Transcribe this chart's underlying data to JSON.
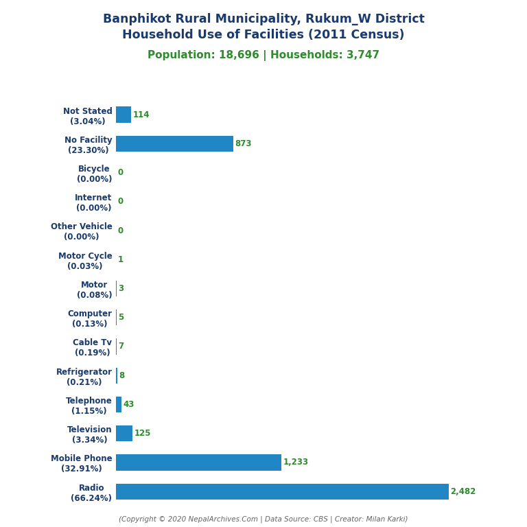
{
  "title_line1": "Banphikot Rural Municipality, Rukum_W District",
  "title_line2": "Household Use of Facilities (2011 Census)",
  "subtitle": "Population: 18,696 | Households: 3,747",
  "categories_bottom_to_top": [
    "Radio\n(66.24%)",
    "Mobile Phone\n(32.91%)",
    "Television\n(3.34%)",
    "Telephone\n(1.15%)",
    "Refrigerator\n(0.21%)",
    "Cable Tv\n(0.19%)",
    "Computer\n(0.13%)",
    "Motor\n(0.08%)",
    "Motor Cycle\n(0.03%)",
    "Other Vehicle\n(0.00%)",
    "Internet\n(0.00%)",
    "Bicycle\n(0.00%)",
    "No Facility\n(23.30%)",
    "Not Stated\n(3.04%)"
  ],
  "values_bottom_to_top": [
    2482,
    1233,
    125,
    43,
    8,
    7,
    5,
    3,
    1,
    0,
    0,
    0,
    873,
    114
  ],
  "value_labels_bottom_to_top": [
    "2,482",
    "1,233",
    "125",
    "43",
    "8",
    "7",
    "5",
    "3",
    "1",
    "0",
    "0",
    "0",
    "873",
    "114"
  ],
  "bar_color": "#2186c4",
  "title_color": "#1a3a6b",
  "subtitle_color": "#2e8b2e",
  "value_color": "#2e8b2e",
  "ylabel_color": "#1a3a6b",
  "footer_text": "(Copyright © 2020 NepalArchives.Com | Data Source: CBS | Creator: Milan Karki)",
  "footer_color": "#666666",
  "background_color": "#ffffff"
}
